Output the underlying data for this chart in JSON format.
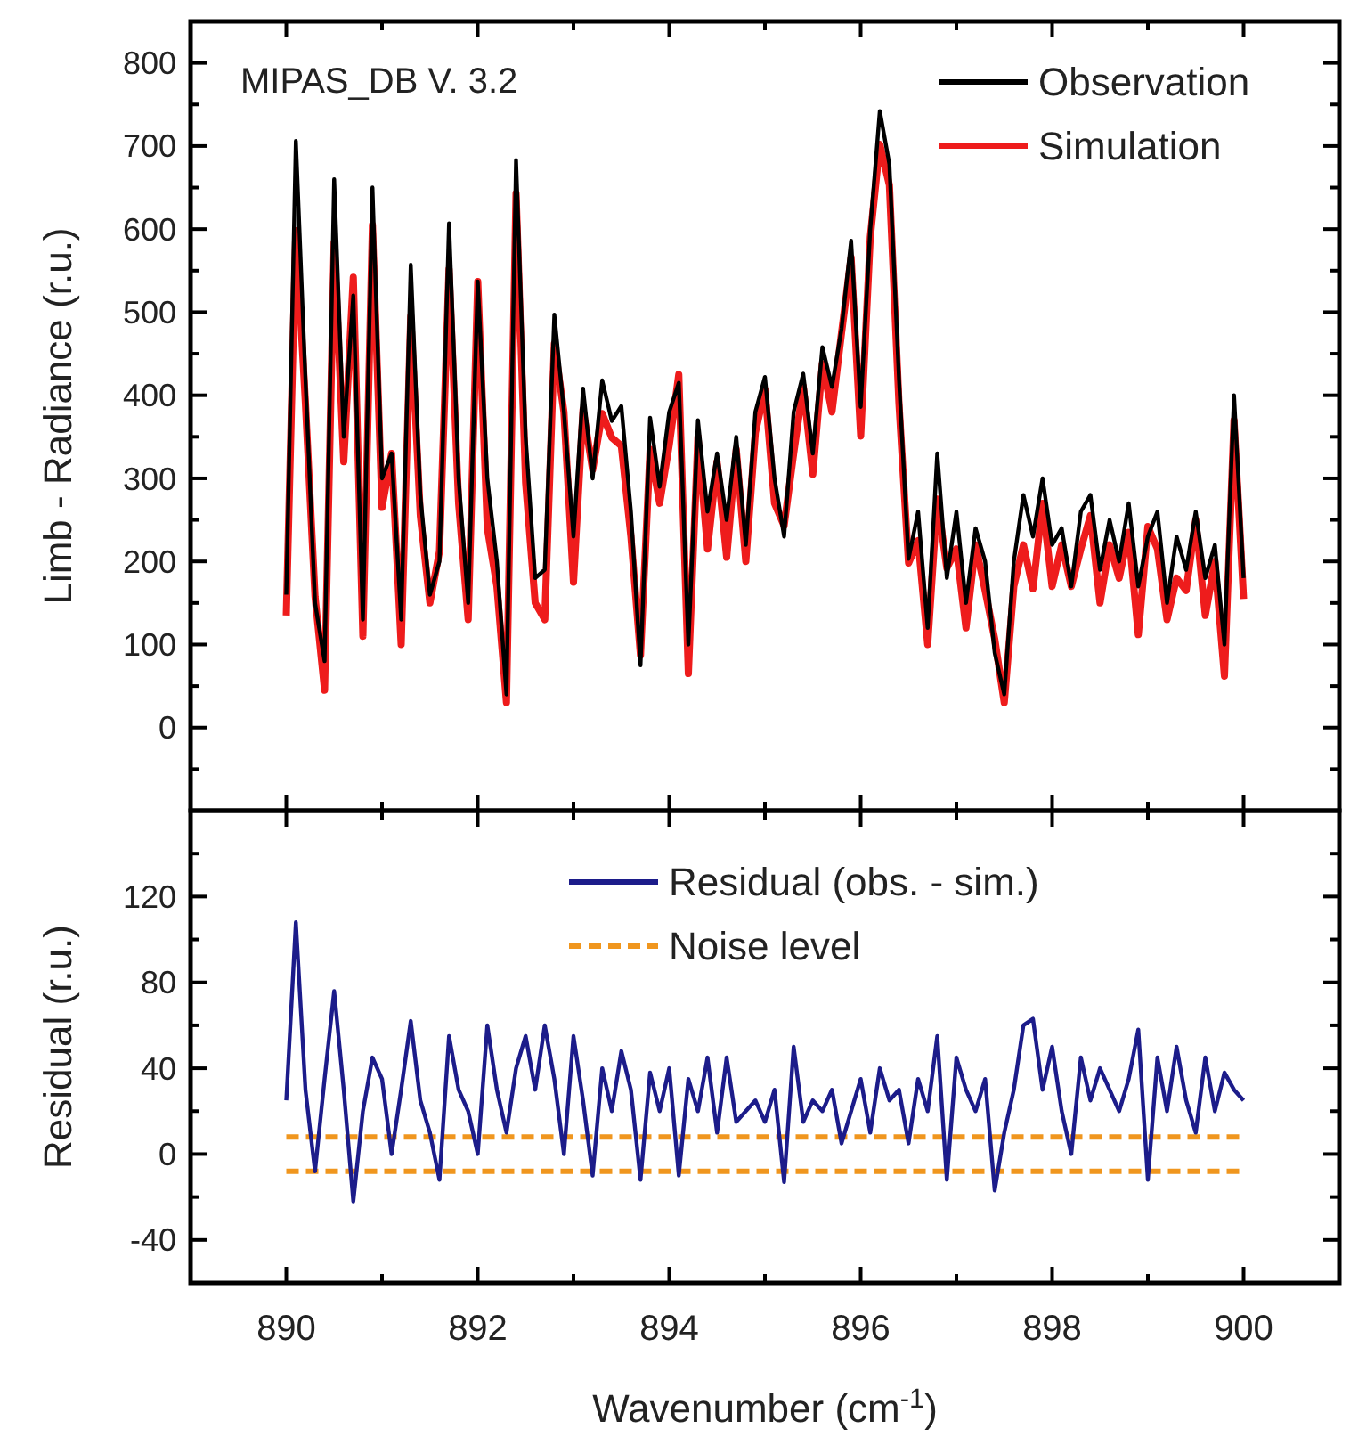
{
  "chart_data": [
    {
      "type": "line",
      "annotations": [
        "MIPAS_DB V. 3.2"
      ],
      "ylabel": "Limb - Radiance (r.u.)",
      "xlim": [
        889,
        901
      ],
      "xticks": [
        890,
        {
          "value": 891,
          "label": null
        },
        892,
        {
          "value": 893,
          "label": null
        },
        894,
        {
          "value": 895,
          "label": null
        },
        896,
        {
          "value": 897,
          "label": null
        },
        898,
        {
          "value": 899,
          "label": null
        },
        900
      ],
      "ylim": [
        -100,
        850
      ],
      "yticks": [
        {
          "value": -50,
          "label": null
        },
        0,
        {
          "value": 50,
          "label": null
        },
        100,
        {
          "value": 150,
          "label": null
        },
        200,
        {
          "value": 250,
          "label": null
        },
        300,
        {
          "value": 350,
          "label": null
        },
        400,
        {
          "value": 450,
          "label": null
        },
        500,
        {
          "value": 550,
          "label": null
        },
        600,
        {
          "value": 650,
          "label": null
        },
        700,
        {
          "value": 750,
          "label": null
        },
        800
      ],
      "tick_labels": "y",
      "legend": "top right",
      "x": [
        890,
        890.1,
        890.2,
        890.3,
        890.4,
        890.5,
        890.6,
        890.7,
        890.8,
        890.9,
        891,
        891.1,
        891.2,
        891.3,
        891.4,
        891.5,
        891.6,
        891.7,
        891.8,
        891.9,
        892,
        892.1,
        892.2,
        892.3,
        892.4,
        892.5,
        892.6,
        892.7,
        892.8,
        892.9,
        893,
        893.1,
        893.2,
        893.3,
        893.4,
        893.5,
        893.6,
        893.7,
        893.8,
        893.9,
        894,
        894.1,
        894.2,
        894.3,
        894.4,
        894.5,
        894.6,
        894.7,
        894.8,
        894.9,
        895,
        895.1,
        895.2,
        895.3,
        895.4,
        895.5,
        895.6,
        895.7,
        895.8,
        895.9,
        896,
        896.1,
        896.2,
        896.3,
        896.4,
        896.5,
        896.6,
        896.7,
        896.8,
        896.9,
        897,
        897.1,
        897.2,
        897.3,
        897.4,
        897.5,
        897.6,
        897.7,
        897.8,
        897.9,
        898,
        898.1,
        898.2,
        898.3,
        898.4,
        898.5,
        898.6,
        898.7,
        898.8,
        898.9,
        899,
        899.1,
        899.2,
        899.3,
        899.4,
        899.5,
        899.6,
        899.7,
        899.8,
        899.9,
        900
      ],
      "series": [
        {
          "name": "Observation",
          "color": "#000000",
          "values": [
            160,
            706,
            420,
            150,
            80,
            660,
            350,
            520,
            130,
            650,
            300,
            330,
            130,
            557,
            280,
            160,
            200,
            607,
            300,
            150,
            537,
            300,
            200,
            40,
            683,
            350,
            180,
            190,
            497,
            380,
            230,
            408,
            300,
            418,
            369,
            387,
            260,
            75,
            373,
            290,
            380,
            415,
            100,
            370,
            260,
            330,
            250,
            350,
            220,
            380,
            422,
            300,
            230,
            380,
            426,
            330,
            458,
            410,
            480,
            586,
            386,
            600,
            742,
            678,
            420,
            203,
            260,
            120,
            330,
            180,
            260,
            150,
            240,
            200,
            90,
            40,
            200,
            280,
            230,
            300,
            220,
            240,
            170,
            260,
            280,
            190,
            250,
            200,
            270,
            170,
            230,
            260,
            150,
            230,
            190,
            260,
            180,
            220,
            100,
            400,
            180
          ]
        },
        {
          "name": "Simulation",
          "color": "#ee1c1c",
          "values": [
            135,
            598,
            390,
            158,
            45,
            584,
            320,
            542,
            110,
            605,
            265,
            330,
            100,
            495,
            255,
            150,
            212,
            552,
            270,
            130,
            537,
            240,
            170,
            30,
            643,
            295,
            150,
            130,
            462,
            380,
            175,
            383,
            310,
            378,
            349,
            339,
            230,
            87,
            335,
            270,
            340,
            425,
            65,
            350,
            215,
            320,
            205,
            335,
            200,
            355,
            407,
            270,
            243,
            330,
            411,
            305,
            438,
            380,
            475,
            566,
            351,
            590,
            702,
            653,
            390,
            198,
            225,
            100,
            275,
            192,
            215,
            120,
            220,
            165,
            107,
            30,
            170,
            220,
            167,
            270,
            170,
            220,
            170,
            215,
            255,
            150,
            220,
            180,
            235,
            112,
            242,
            215,
            130,
            180,
            165,
            250,
            135,
            200,
            62,
            370,
            155
          ]
        }
      ]
    },
    {
      "type": "line",
      "xlabel": "Wavenumber (cm$^{-1}$)",
      "ylabel": "Residual (r.u.)",
      "xlim": [
        889,
        901
      ],
      "xticks": [
        890,
        {
          "value": 891,
          "label": null
        },
        892,
        {
          "value": 893,
          "label": null
        },
        894,
        {
          "value": 895,
          "label": null
        },
        896,
        {
          "value": 897,
          "label": null
        },
        898,
        {
          "value": 899,
          "label": null
        },
        900
      ],
      "ylim": [
        -60,
        160
      ],
      "yticks": [
        -40,
        {
          "value": -20,
          "label": null
        },
        0,
        {
          "value": 20,
          "label": null
        },
        40,
        {
          "value": 60,
          "label": null
        },
        80,
        {
          "value": 100,
          "label": null
        },
        120,
        {
          "value": 140,
          "label": null
        }
      ],
      "legend": "top",
      "series": [
        {
          "name": "Residual (obs. - sim.)",
          "color": "#1c1c8a",
          "x": [
            890,
            890.1,
            890.2,
            890.3,
            890.4,
            890.5,
            890.6,
            890.7,
            890.8,
            890.9,
            891,
            891.1,
            891.2,
            891.3,
            891.4,
            891.5,
            891.6,
            891.7,
            891.8,
            891.9,
            892,
            892.1,
            892.2,
            892.3,
            892.4,
            892.5,
            892.6,
            892.7,
            892.8,
            892.9,
            893,
            893.1,
            893.2,
            893.3,
            893.4,
            893.5,
            893.6,
            893.7,
            893.8,
            893.9,
            894,
            894.1,
            894.2,
            894.3,
            894.4,
            894.5,
            894.6,
            894.7,
            894.8,
            894.9,
            895,
            895.1,
            895.2,
            895.3,
            895.4,
            895.5,
            895.6,
            895.7,
            895.8,
            895.9,
            896,
            896.1,
            896.2,
            896.3,
            896.4,
            896.5,
            896.6,
            896.7,
            896.8,
            896.9,
            897,
            897.1,
            897.2,
            897.3,
            897.4,
            897.5,
            897.6,
            897.7,
            897.8,
            897.9,
            898,
            898.1,
            898.2,
            898.3,
            898.4,
            898.5,
            898.6,
            898.7,
            898.8,
            898.9,
            899,
            899.1,
            899.2,
            899.3,
            899.4,
            899.5,
            899.6,
            899.7,
            899.8,
            899.9,
            900
          ],
          "values": [
            25,
            108,
            30,
            -8,
            35,
            76,
            30,
            -22,
            20,
            45,
            35,
            0,
            30,
            62,
            25,
            10,
            -12,
            55,
            30,
            20,
            0,
            60,
            30,
            10,
            40,
            55,
            30,
            60,
            35,
            0,
            55,
            25,
            -10,
            40,
            20,
            48,
            30,
            -12,
            38,
            20,
            40,
            -10,
            35,
            20,
            45,
            10,
            45,
            15,
            20,
            25,
            15,
            30,
            -13,
            50,
            15,
            25,
            20,
            30,
            5,
            20,
            35,
            10,
            40,
            25,
            30,
            5,
            35,
            20,
            55,
            -12,
            45,
            30,
            20,
            35,
            -17,
            10,
            30,
            60,
            63,
            30,
            50,
            20,
            0,
            45,
            25,
            40,
            30,
            20,
            35,
            58,
            -12,
            45,
            20,
            50,
            25,
            10,
            45,
            20,
            38,
            30,
            25
          ]
        },
        {
          "name": "Noise level",
          "color": "#f0961e",
          "line_style": "dashed",
          "x": [
            890,
            900
          ],
          "values": [
            8,
            8
          ]
        },
        {
          "color": "#f0961e",
          "line_style": "dashed",
          "x": [
            890,
            900
          ],
          "values": [
            -8,
            -8
          ]
        }
      ]
    }
  ]
}
